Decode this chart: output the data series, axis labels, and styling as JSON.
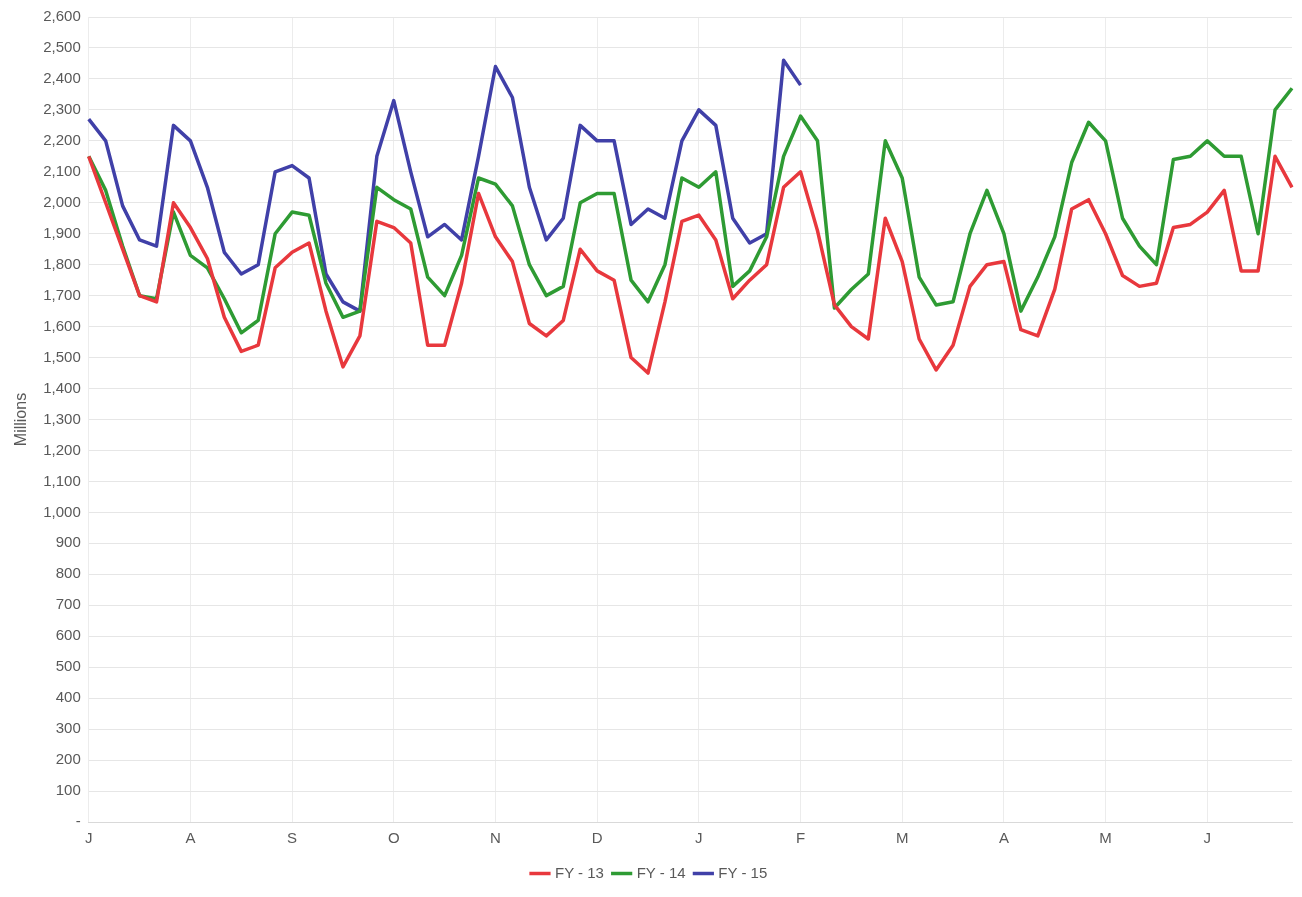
{
  "chart_data": {
    "type": "line",
    "ylabel": "Millions",
    "categories": [
      "J",
      null,
      null,
      null,
      null,
      null,
      "A",
      null,
      null,
      null,
      null,
      null,
      "S",
      null,
      null,
      null,
      null,
      null,
      "O",
      null,
      null,
      null,
      null,
      null,
      "N",
      null,
      null,
      null,
      null,
      null,
      "D",
      null,
      null,
      null,
      null,
      null,
      "J",
      null,
      null,
      null,
      null,
      null,
      "F",
      null,
      null,
      null,
      null,
      null,
      "M",
      null,
      null,
      null,
      null,
      null,
      "A",
      null,
      null,
      null,
      null,
      null,
      "M",
      null,
      null,
      null,
      null,
      null,
      "J",
      null,
      null,
      null,
      null,
      null
    ],
    "ylim": [
      0,
      2600
    ],
    "yticks": [
      {
        "value": 0,
        "label": "-"
      },
      100,
      200,
      300,
      400,
      500,
      600,
      700,
      800,
      900,
      {
        "value": 1000,
        "label": "1,000"
      },
      {
        "value": 1100,
        "label": "1,100"
      },
      {
        "value": 1200,
        "label": "1,200"
      },
      {
        "value": 1300,
        "label": "1,300"
      },
      {
        "value": 1400,
        "label": "1,400"
      },
      {
        "value": 1500,
        "label": "1,500"
      },
      {
        "value": 1600,
        "label": "1,600"
      },
      {
        "value": 1700,
        "label": "1,700"
      },
      {
        "value": 1800,
        "label": "1,800"
      },
      {
        "value": 1900,
        "label": "1,900"
      },
      {
        "value": 2000,
        "label": "2,000"
      },
      {
        "value": 2100,
        "label": "2,100"
      },
      {
        "value": 2200,
        "label": "2,200"
      },
      {
        "value": 2300,
        "label": "2,300"
      },
      {
        "value": 2400,
        "label": "2,400"
      },
      {
        "value": 2500,
        "label": "2,500"
      },
      {
        "value": 2600,
        "label": "2,600"
      }
    ],
    "grid": true,
    "legend": "bottom",
    "marker": "none",
    "line_style": "solid",
    "series": [
      {
        "name": "FY - 13",
        "color": "#e8383d",
        "values": [
          2150,
          2000,
          1850,
          1700,
          1680,
          2000,
          1920,
          1820,
          1630,
          1520,
          1540,
          1790,
          1840,
          1870,
          1650,
          1470,
          1570,
          1940,
          1920,
          1870,
          1540,
          1540,
          1740,
          2030,
          1890,
          1810,
          1610,
          1570,
          1620,
          1850,
          1780,
          1750,
          1500,
          1450,
          1680,
          1940,
          1960,
          1880,
          1690,
          1750,
          1800,
          2050,
          2100,
          1910,
          1670,
          1600,
          1560,
          1950,
          1810,
          1560,
          1460,
          1540,
          1730,
          1800,
          1810,
          1590,
          1570,
          1720,
          1980,
          2010,
          1900,
          1765,
          1730,
          1740,
          1920,
          1930,
          1970,
          2040,
          1780,
          1780,
          2150,
          2050
        ]
      },
      {
        "name": "FY - 14",
        "color": "#2e9b33",
        "values": [
          2150,
          2040,
          1860,
          1700,
          1690,
          1970,
          1830,
          1790,
          1690,
          1580,
          1620,
          1900,
          1970,
          1960,
          1740,
          1630,
          1650,
          2050,
          2010,
          1980,
          1760,
          1700,
          1830,
          2080,
          2060,
          1990,
          1800,
          1700,
          1730,
          2000,
          2030,
          2030,
          1750,
          1680,
          1800,
          2080,
          2050,
          2100,
          1730,
          1780,
          1890,
          2150,
          2280,
          2200,
          1660,
          1720,
          1770,
          2200,
          2080,
          1760,
          1670,
          1680,
          1900,
          2040,
          1900,
          1650,
          1760,
          1890,
          2130,
          2260,
          2200,
          1950,
          1860,
          1800,
          2140,
          2150,
          2200,
          2150,
          2150,
          1900,
          2300,
          2370
        ]
      },
      {
        "name": "FY - 15",
        "color": "#4040a8",
        "values": [
          2270,
          2200,
          1990,
          1880,
          1860,
          2250,
          2200,
          2050,
          1840,
          1770,
          1800,
          2100,
          2120,
          2080,
          1770,
          1680,
          1650,
          2150,
          2330,
          2100,
          1890,
          1930,
          1880,
          2150,
          2440,
          2340,
          2050,
          1880,
          1950,
          2250,
          2200,
          2200,
          1930,
          1980,
          1950,
          2200,
          2300,
          2250,
          1950,
          1870,
          1900,
          2460,
          2380,
          null,
          null,
          null,
          null,
          null,
          null,
          null,
          null,
          null,
          null,
          null,
          null,
          null,
          null,
          null,
          null,
          null,
          null,
          null,
          null,
          null,
          null,
          null,
          null,
          null,
          null,
          null,
          null,
          null
        ]
      }
    ]
  }
}
